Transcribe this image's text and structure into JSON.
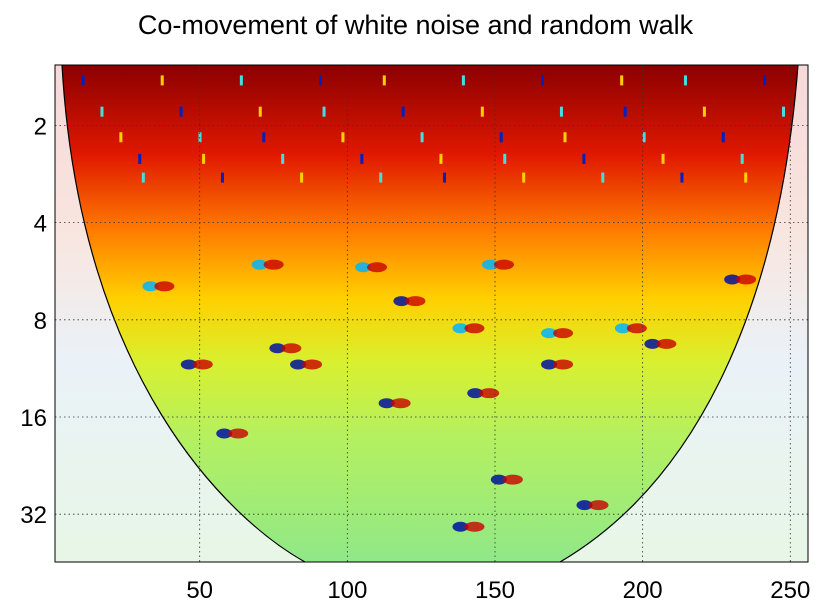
{
  "chart_data": {
    "type": "heatmap",
    "title": "Co-movement of white noise and random walk",
    "xlabel": "",
    "ylabel": "",
    "x_ticks": [
      50,
      100,
      150,
      200,
      250
    ],
    "y_ticks": [
      "2",
      "4",
      "8",
      "16",
      "32"
    ],
    "xlim": [
      1,
      256
    ],
    "ylim_period": [
      1.3,
      45
    ],
    "y_scale": "log2",
    "grid": true,
    "colormap": "jet",
    "cone_of_influence": true,
    "description_values": {
      "high_coherence_periods": [
        1.3,
        4
      ],
      "low_coherence_regions": "outside cone of influence (faded)"
    }
  }
}
